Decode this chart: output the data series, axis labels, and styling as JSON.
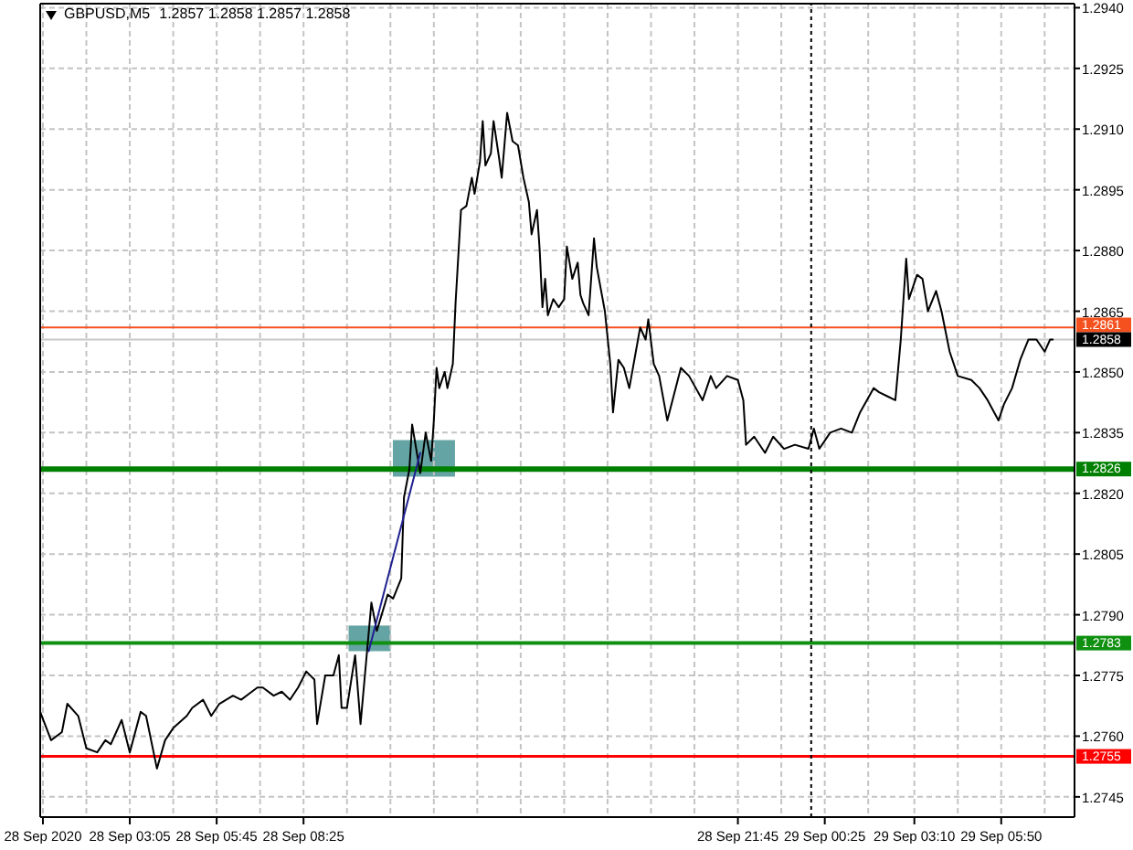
{
  "chart_data": {
    "type": "line",
    "title": "GBPUSD,M5",
    "subtitle": "1.2857 1.2858 1.2857 1.2858",
    "x": [
      "2020-09-28T00:20",
      "2020-09-28T00:40",
      "2020-09-28T01:00",
      "2020-09-28T01:10",
      "2020-09-28T01:30",
      "2020-09-28T01:45",
      "2020-09-28T02:05",
      "2020-09-28T02:20",
      "2020-09-28T02:30",
      "2020-09-28T02:50",
      "2020-09-28T03:05",
      "2020-09-28T03:25",
      "2020-09-28T03:35",
      "2020-09-28T03:55",
      "2020-09-28T04:10",
      "2020-09-28T04:25",
      "2020-09-28T04:50",
      "2020-09-28T05:00",
      "2020-09-28T05:20",
      "2020-09-28T05:35",
      "2020-09-28T05:50",
      "2020-09-28T06:15",
      "2020-09-28T06:30",
      "2020-09-28T07:00",
      "2020-09-28T07:10",
      "2020-09-28T07:30",
      "2020-09-28T07:45",
      "2020-09-28T08:00",
      "2020-09-28T08:15",
      "2020-09-28T08:30",
      "2020-09-28T08:45",
      "2020-09-28T08:50",
      "2020-09-28T09:05",
      "2020-09-28T09:20",
      "2020-09-28T09:30",
      "2020-09-28T09:35",
      "2020-09-28T09:45",
      "2020-09-28T10:00",
      "2020-09-28T10:10",
      "2020-09-28T10:20",
      "2020-09-28T10:30",
      "2020-09-28T10:40",
      "2020-09-28T11:00",
      "2020-09-28T11:10",
      "2020-09-28T11:25",
      "2020-09-28T11:30",
      "2020-09-28T11:40",
      "2020-09-28T11:45",
      "2020-09-28T12:00",
      "2020-09-28T12:10",
      "2020-09-28T12:20",
      "2020-09-28T12:25",
      "2020-09-28T12:30",
      "2020-09-28T12:35",
      "2020-09-28T12:45",
      "2020-09-28T12:50",
      "2020-09-28T13:00",
      "2020-09-28T13:05",
      "2020-09-28T13:15",
      "2020-09-28T13:25",
      "2020-09-28T13:35",
      "2020-09-28T13:40",
      "2020-09-28T13:50",
      "2020-09-28T13:55",
      "2020-09-28T14:00",
      "2020-09-28T14:10",
      "2020-09-28T14:15",
      "2020-09-28T14:25",
      "2020-09-28T14:30",
      "2020-09-28T14:40",
      "2020-09-28T14:50",
      "2020-09-28T15:00",
      "2020-09-28T15:10",
      "2020-09-28T15:20",
      "2020-09-28T15:25",
      "2020-09-28T15:35",
      "2020-09-28T15:40",
      "2020-09-28T15:45",
      "2020-09-28T15:50",
      "2020-09-28T15:55",
      "2020-09-28T16:05",
      "2020-09-28T16:15",
      "2020-09-28T16:25",
      "2020-09-28T16:30",
      "2020-09-28T16:40",
      "2020-09-28T16:50",
      "2020-09-28T16:55",
      "2020-09-28T17:00",
      "2020-09-28T17:10",
      "2020-09-28T17:20",
      "2020-09-28T17:25",
      "2020-09-28T17:40",
      "2020-09-28T17:50",
      "2020-09-28T17:55",
      "2020-09-28T18:05",
      "2020-09-28T18:15",
      "2020-09-28T18:25",
      "2020-09-28T18:45",
      "2020-09-28T18:55",
      "2020-09-28T19:00",
      "2020-09-28T19:10",
      "2020-09-28T19:20",
      "2020-09-28T19:35",
      "2020-09-28T20:00",
      "2020-09-28T20:15",
      "2020-09-28T20:40",
      "2020-09-28T20:55",
      "2020-09-28T21:05",
      "2020-09-28T21:25",
      "2020-09-28T21:45",
      "2020-09-28T21:55",
      "2020-09-28T22:00",
      "2020-09-28T22:15",
      "2020-09-28T22:35",
      "2020-09-28T22:50",
      "2020-09-28T23:10",
      "2020-09-28T23:30",
      "2020-09-28T23:55",
      "2020-09-29T00:05",
      "2020-09-29T00:15",
      "2020-09-29T00:35",
      "2020-09-29T00:55",
      "2020-09-29T01:15",
      "2020-09-29T01:30",
      "2020-09-29T01:55",
      "2020-09-29T02:05",
      "2020-09-29T02:20",
      "2020-09-29T02:35",
      "2020-09-29T02:45",
      "2020-09-29T02:55",
      "2020-09-29T03:00",
      "2020-09-29T03:15",
      "2020-09-29T03:25",
      "2020-09-29T03:35",
      "2020-09-29T03:50",
      "2020-09-29T04:00",
      "2020-09-29T04:15",
      "2020-09-29T04:30",
      "2020-09-29T04:55",
      "2020-09-29T05:10",
      "2020-09-29T05:25",
      "2020-09-29T05:45",
      "2020-09-29T05:55",
      "2020-09-29T06:10",
      "2020-09-29T06:25",
      "2020-09-29T06:40",
      "2020-09-29T06:55",
      "2020-09-29T07:10",
      "2020-09-29T07:20",
      "2020-09-29T07:25"
    ],
    "series": [
      {
        "color": "#000000",
        "values": [
          1.2766,
          1.2759,
          1.2761,
          1.2768,
          1.2765,
          1.2757,
          1.2756,
          1.2759,
          1.2758,
          1.2764,
          1.2756,
          1.2766,
          1.2765,
          1.2752,
          1.2759,
          1.2762,
          1.2765,
          1.2767,
          1.2769,
          1.2765,
          1.2768,
          1.277,
          1.2769,
          1.2772,
          1.2772,
          1.277,
          1.2771,
          1.2769,
          1.2772,
          1.2776,
          1.2774,
          1.2763,
          1.2775,
          1.2775,
          1.278,
          1.2767,
          1.2767,
          1.278,
          1.2763,
          1.2778,
          1.2793,
          1.2786,
          1.2795,
          1.2794,
          1.2799,
          1.2819,
          1.2826,
          1.2837,
          1.2825,
          1.2835,
          1.2828,
          1.2838,
          1.2851,
          1.2846,
          1.285,
          1.2846,
          1.2852,
          1.2867,
          1.289,
          1.2891,
          1.2898,
          1.2894,
          1.2902,
          1.2912,
          1.2901,
          1.2904,
          1.2912,
          1.2903,
          1.2898,
          1.2914,
          1.2907,
          1.2906,
          1.2898,
          1.2892,
          1.2884,
          1.289,
          1.288,
          1.2866,
          1.2873,
          1.2864,
          1.2868,
          1.2866,
          1.2868,
          1.2881,
          1.2873,
          1.2877,
          1.2869,
          1.2867,
          1.2864,
          1.2883,
          1.2876,
          1.2865,
          1.2852,
          1.284,
          1.2853,
          1.2851,
          1.2846,
          1.2861,
          1.2858,
          1.2863,
          1.2852,
          1.2849,
          1.2838,
          1.2851,
          1.2849,
          1.2843,
          1.2849,
          1.2846,
          1.2849,
          1.2848,
          1.2843,
          1.2832,
          1.2834,
          1.283,
          1.2834,
          1.2831,
          1.2832,
          1.2831,
          1.2836,
          1.2831,
          1.2835,
          1.2836,
          1.2835,
          1.284,
          1.2846,
          1.2845,
          1.2844,
          1.2843,
          1.2858,
          1.2878,
          1.2868,
          1.2874,
          1.2873,
          1.2865,
          1.287,
          1.2865,
          1.2855,
          1.2849,
          1.2848,
          1.2846,
          1.2843,
          1.2838,
          1.2842,
          1.2846,
          1.2853,
          1.2858,
          1.2858,
          1.2855,
          1.2858,
          1.2858
        ]
      },
      {
        "type": "line",
        "color": "#202090",
        "x": [
          "2020-09-28T10:25",
          "2020-09-28T12:00"
        ],
        "values": [
          1.2781,
          1.283
        ]
      }
    ],
    "xlim": [
      "2020-09-28T00:20",
      "2020-09-29T08:05"
    ],
    "xticks": [
      {
        "value": "2020-09-28T00:25",
        "label": "28 Sep 2020"
      },
      {
        "value": "2020-09-28T01:45",
        "label": null
      },
      {
        "value": "2020-09-28T03:05",
        "label": "28 Sep 03:05"
      },
      {
        "value": "2020-09-28T04:25",
        "label": null
      },
      {
        "value": "2020-09-28T05:45",
        "label": "28 Sep 05:45"
      },
      {
        "value": "2020-09-28T07:05",
        "label": null
      },
      {
        "value": "2020-09-28T08:25",
        "label": "28 Sep 08:25"
      },
      {
        "value": "2020-09-28T09:45",
        "label": null
      },
      {
        "value": "2020-09-28T11:05",
        "label": null
      },
      {
        "value": "2020-09-28T12:25",
        "label": null
      },
      {
        "value": "2020-09-28T13:45",
        "label": null
      },
      {
        "value": "2020-09-28T15:05",
        "label": null
      },
      {
        "value": "2020-09-28T16:25",
        "label": null
      },
      {
        "value": "2020-09-28T17:45",
        "label": null
      },
      {
        "value": "2020-09-28T19:05",
        "label": null
      },
      {
        "value": "2020-09-28T20:25",
        "label": null
      },
      {
        "value": "2020-09-28T21:45",
        "label": "28 Sep 21:45"
      },
      {
        "value": "2020-09-28T23:05",
        "label": null
      },
      {
        "value": "2020-09-29T00:25",
        "label": "29 Sep 00:25"
      },
      {
        "value": "2020-09-29T01:45",
        "label": null
      },
      {
        "value": "2020-09-29T03:10",
        "label": "29 Sep 03:10"
      },
      {
        "value": "2020-09-29T04:30",
        "label": null
      },
      {
        "value": "2020-09-29T05:50",
        "label": "29 Sep 05:50"
      },
      {
        "value": "2020-09-29T07:10",
        "label": null
      }
    ],
    "ylim": [
      1.274,
      1.2941
    ],
    "yticks": [
      1.2745,
      {
        "value": 1.276,
        "label": "1.2760"
      },
      1.2775,
      {
        "value": 1.279,
        "label": "1.2790"
      },
      1.2805,
      {
        "value": 1.282,
        "label": "1.2820"
      },
      1.2835,
      {
        "value": 1.285,
        "label": "1.2850"
      },
      1.2865,
      {
        "value": 1.288,
        "label": "1.2880"
      },
      1.2895,
      {
        "value": 1.291,
        "label": "1.2910"
      },
      1.2925,
      {
        "value": 1.294,
        "label": "1.2940"
      }
    ],
    "ref_lines": [
      {
        "axis": "y",
        "value": 1.2826,
        "label": "1.2826",
        "color": "#008000"
      },
      {
        "axis": "y",
        "value": 1.2783,
        "label": "1.2783",
        "color": "#109010"
      },
      {
        "axis": "y",
        "value": 1.2755,
        "label": "1.2755",
        "color": "#ff0000"
      },
      {
        "axis": "y",
        "value": 1.2861,
        "label": "1.2861",
        "color": "#f4511e"
      },
      {
        "axis": "y",
        "value": 1.2858,
        "label": "1.2858",
        "color": "#c8c8c8"
      },
      {
        "axis": "x",
        "value": "2020-09-29T00:00",
        "color": "#000000",
        "line_style": "dotted"
      }
    ],
    "grid": true
  }
}
